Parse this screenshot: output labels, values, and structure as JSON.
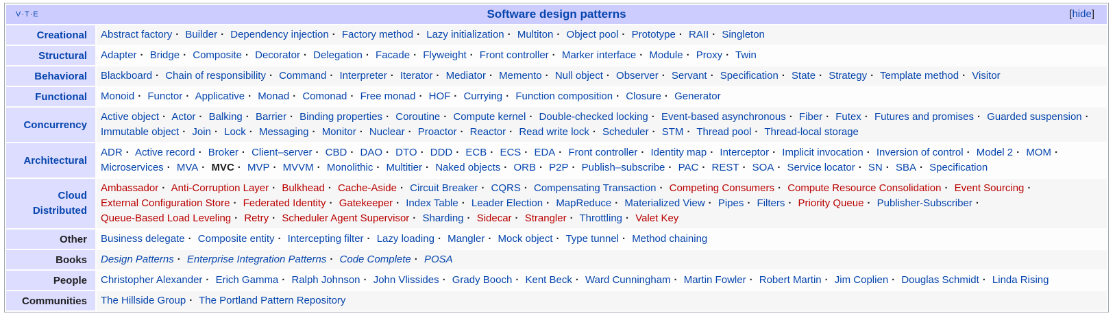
{
  "navbox": {
    "vte": [
      "V",
      "T",
      "E"
    ],
    "title": "Software design patterns",
    "hide_label": "hide",
    "groups": [
      {
        "name": "creational",
        "label": "Creational",
        "label_linked": true,
        "items": [
          {
            "text": "Abstract factory"
          },
          {
            "text": "Builder"
          },
          {
            "text": "Dependency injection"
          },
          {
            "text": "Factory method"
          },
          {
            "text": "Lazy initialization"
          },
          {
            "text": "Multiton"
          },
          {
            "text": "Object pool"
          },
          {
            "text": "Prototype"
          },
          {
            "text": "RAII"
          },
          {
            "text": "Singleton"
          }
        ]
      },
      {
        "name": "structural",
        "label": "Structural",
        "label_linked": true,
        "items": [
          {
            "text": "Adapter"
          },
          {
            "text": "Bridge"
          },
          {
            "text": "Composite"
          },
          {
            "text": "Decorator"
          },
          {
            "text": "Delegation"
          },
          {
            "text": "Facade"
          },
          {
            "text": "Flyweight"
          },
          {
            "text": "Front controller"
          },
          {
            "text": "Marker interface"
          },
          {
            "text": "Module"
          },
          {
            "text": "Proxy"
          },
          {
            "text": "Twin"
          }
        ]
      },
      {
        "name": "behavioral",
        "label": "Behavioral",
        "label_linked": true,
        "items": [
          {
            "text": "Blackboard"
          },
          {
            "text": "Chain of responsibility"
          },
          {
            "text": "Command"
          },
          {
            "text": "Interpreter"
          },
          {
            "text": "Iterator"
          },
          {
            "text": "Mediator"
          },
          {
            "text": "Memento"
          },
          {
            "text": "Null object"
          },
          {
            "text": "Observer"
          },
          {
            "text": "Servant"
          },
          {
            "text": "Specification"
          },
          {
            "text": "State"
          },
          {
            "text": "Strategy"
          },
          {
            "text": "Template method"
          },
          {
            "text": "Visitor"
          }
        ]
      },
      {
        "name": "functional",
        "label": "Functional",
        "label_linked": true,
        "items": [
          {
            "text": "Monoid"
          },
          {
            "text": "Functor"
          },
          {
            "text": "Applicative"
          },
          {
            "text": "Monad"
          },
          {
            "text": "Comonad"
          },
          {
            "text": "Free monad"
          },
          {
            "text": "HOF"
          },
          {
            "text": "Currying"
          },
          {
            "text": "Function composition"
          },
          {
            "text": "Closure"
          },
          {
            "text": "Generator"
          }
        ]
      },
      {
        "name": "concurrency",
        "label": "Concurrency",
        "label_linked": true,
        "items": [
          {
            "text": "Active object"
          },
          {
            "text": "Actor"
          },
          {
            "text": "Balking"
          },
          {
            "text": "Barrier"
          },
          {
            "text": "Binding properties"
          },
          {
            "text": "Coroutine"
          },
          {
            "text": "Compute kernel"
          },
          {
            "text": "Double-checked locking"
          },
          {
            "text": "Event-based asynchronous"
          },
          {
            "text": "Fiber"
          },
          {
            "text": "Futex"
          },
          {
            "text": "Futures and promises"
          },
          {
            "text": "Guarded suspension"
          },
          {
            "text": "Immutable object"
          },
          {
            "text": "Join"
          },
          {
            "text": "Lock"
          },
          {
            "text": "Messaging"
          },
          {
            "text": "Monitor"
          },
          {
            "text": "Nuclear"
          },
          {
            "text": "Proactor"
          },
          {
            "text": "Reactor"
          },
          {
            "text": "Read write lock"
          },
          {
            "text": "Scheduler"
          },
          {
            "text": "STM"
          },
          {
            "text": "Thread pool"
          },
          {
            "text": "Thread-local storage"
          }
        ]
      },
      {
        "name": "architectural",
        "label": "Architectural",
        "label_linked": true,
        "items": [
          {
            "text": "ADR"
          },
          {
            "text": "Active record"
          },
          {
            "text": "Broker"
          },
          {
            "text": "Client–server"
          },
          {
            "text": "CBD"
          },
          {
            "text": "DAO"
          },
          {
            "text": "DTO"
          },
          {
            "text": "DDD"
          },
          {
            "text": "ECB"
          },
          {
            "text": "ECS"
          },
          {
            "text": "EDA"
          },
          {
            "text": "Front controller"
          },
          {
            "text": "Identity map"
          },
          {
            "text": "Interceptor"
          },
          {
            "text": "Implicit invocation"
          },
          {
            "text": "Inversion of control"
          },
          {
            "text": "Model 2"
          },
          {
            "text": "MOM"
          },
          {
            "text": "Microservices"
          },
          {
            "text": "MVA"
          },
          {
            "text": "MVC",
            "style": "bold"
          },
          {
            "text": "MVP"
          },
          {
            "text": "MVVM"
          },
          {
            "text": "Monolithic"
          },
          {
            "text": "Multitier"
          },
          {
            "text": "Naked objects"
          },
          {
            "text": "ORB"
          },
          {
            "text": "P2P"
          },
          {
            "text": "Publish–subscribe"
          },
          {
            "text": "PAC"
          },
          {
            "text": "REST"
          },
          {
            "text": "SOA"
          },
          {
            "text": "Service locator"
          },
          {
            "text": "SN"
          },
          {
            "text": "SBA"
          },
          {
            "text": "Specification"
          }
        ]
      },
      {
        "name": "cloud-distributed",
        "label": "Cloud Distributed",
        "label_linked": true,
        "items": [
          {
            "text": "Ambassador",
            "style": "red"
          },
          {
            "text": "Anti-Corruption Layer",
            "style": "red"
          },
          {
            "text": "Bulkhead",
            "style": "red"
          },
          {
            "text": "Cache-Aside",
            "style": "red"
          },
          {
            "text": "Circuit Breaker"
          },
          {
            "text": "CQRS"
          },
          {
            "text": "Compensating Transaction"
          },
          {
            "text": "Competing Consumers",
            "style": "red"
          },
          {
            "text": "Compute Resource Consolidation",
            "style": "red"
          },
          {
            "text": "Event Sourcing",
            "style": "red"
          },
          {
            "text": "External Configuration Store",
            "style": "red"
          },
          {
            "text": "Federated Identity",
            "style": "red"
          },
          {
            "text": "Gatekeeper",
            "style": "red"
          },
          {
            "text": "Index Table"
          },
          {
            "text": "Leader Election"
          },
          {
            "text": "MapReduce"
          },
          {
            "text": "Materialized View"
          },
          {
            "text": "Pipes"
          },
          {
            "text": "Filters"
          },
          {
            "text": "Priority Queue",
            "style": "red"
          },
          {
            "text": "Publisher-Subscriber"
          },
          {
            "text": "Queue-Based Load Leveling",
            "style": "red"
          },
          {
            "text": "Retry",
            "style": "red"
          },
          {
            "text": "Scheduler Agent Supervisor",
            "style": "red"
          },
          {
            "text": "Sharding"
          },
          {
            "text": "Sidecar",
            "style": "red"
          },
          {
            "text": "Strangler",
            "style": "red"
          },
          {
            "text": "Throttling"
          },
          {
            "text": "Valet Key",
            "style": "red"
          }
        ]
      },
      {
        "name": "other",
        "label": "Other",
        "label_linked": false,
        "items": [
          {
            "text": "Business delegate"
          },
          {
            "text": "Composite entity"
          },
          {
            "text": "Intercepting filter"
          },
          {
            "text": "Lazy loading"
          },
          {
            "text": "Mangler"
          },
          {
            "text": "Mock object"
          },
          {
            "text": "Type tunnel"
          },
          {
            "text": "Method chaining"
          }
        ]
      },
      {
        "name": "books",
        "label": "Books",
        "label_linked": false,
        "items": [
          {
            "text": "Design Patterns",
            "style": "ital"
          },
          {
            "text": "Enterprise Integration Patterns",
            "style": "ital"
          },
          {
            "text": "Code Complete",
            "style": "ital"
          },
          {
            "text": "POSA",
            "style": "ital"
          }
        ]
      },
      {
        "name": "people",
        "label": "People",
        "label_linked": false,
        "items": [
          {
            "text": "Christopher Alexander"
          },
          {
            "text": "Erich Gamma"
          },
          {
            "text": "Ralph Johnson"
          },
          {
            "text": "John Vlissides"
          },
          {
            "text": "Grady Booch"
          },
          {
            "text": "Kent Beck"
          },
          {
            "text": "Ward Cunningham"
          },
          {
            "text": "Martin Fowler"
          },
          {
            "text": "Robert Martin"
          },
          {
            "text": "Jim Coplien"
          },
          {
            "text": "Douglas Schmidt"
          },
          {
            "text": "Linda Rising"
          }
        ]
      },
      {
        "name": "communities",
        "label": "Communities",
        "label_linked": false,
        "items": [
          {
            "text": "The Hillside Group"
          },
          {
            "text": "The Portland Pattern Repository"
          }
        ]
      }
    ]
  },
  "colors": {
    "link": "#0645ad",
    "redlink": "#ba0000",
    "title_bg": "#ccccff",
    "group_bg": "#ddddff"
  }
}
